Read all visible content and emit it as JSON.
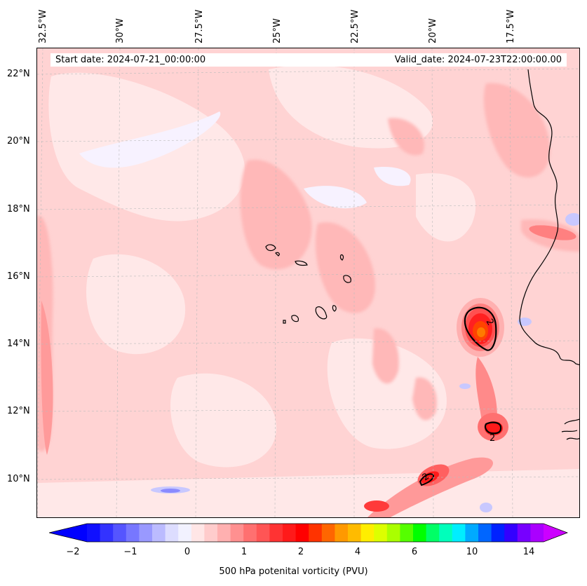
{
  "dates": {
    "start": "Start date: 2024-07-21_00:00:00",
    "valid": "Valid_date: 2024-07-23T22:00:00.00"
  },
  "lon_labels": [
    "32.5°W",
    "30°W",
    "27.5°W",
    "25°W",
    "22.5°W",
    "20°W",
    "17.5°W"
  ],
  "lat_labels": [
    "22°N",
    "20°N",
    "18°N",
    "16°N",
    "14°N",
    "12°N",
    "10°N"
  ],
  "contour_labels": [
    "2",
    "2",
    "2"
  ],
  "colorbar": {
    "label": "500 hPa potenital vorticity (PVU)",
    "ticks": [
      "−2",
      "−1",
      "0",
      "1",
      "2",
      "4",
      "6",
      "10",
      "14"
    ],
    "colors": [
      "#1010ff",
      "#3333ff",
      "#5555ff",
      "#7777ff",
      "#9999ff",
      "#bbbbff",
      "#ddddff",
      "#f2f2ff",
      "#ffe6e6",
      "#ffcccc",
      "#ffb0b0",
      "#ff9090",
      "#ff7070",
      "#ff5555",
      "#ff3333",
      "#ff1a1a",
      "#ff0000",
      "#ff3300",
      "#ff6600",
      "#ff9900",
      "#ffbb00",
      "#ffee00",
      "#ddff00",
      "#aaff00",
      "#55ff00",
      "#00ff00",
      "#00ff66",
      "#00ffbb",
      "#00eeff",
      "#00aaff",
      "#0066ff",
      "#0022ff",
      "#3300ff",
      "#7700ff",
      "#aa00ff"
    ],
    "under_color": "#0000ff",
    "over_color": "#cc00ff"
  }
}
